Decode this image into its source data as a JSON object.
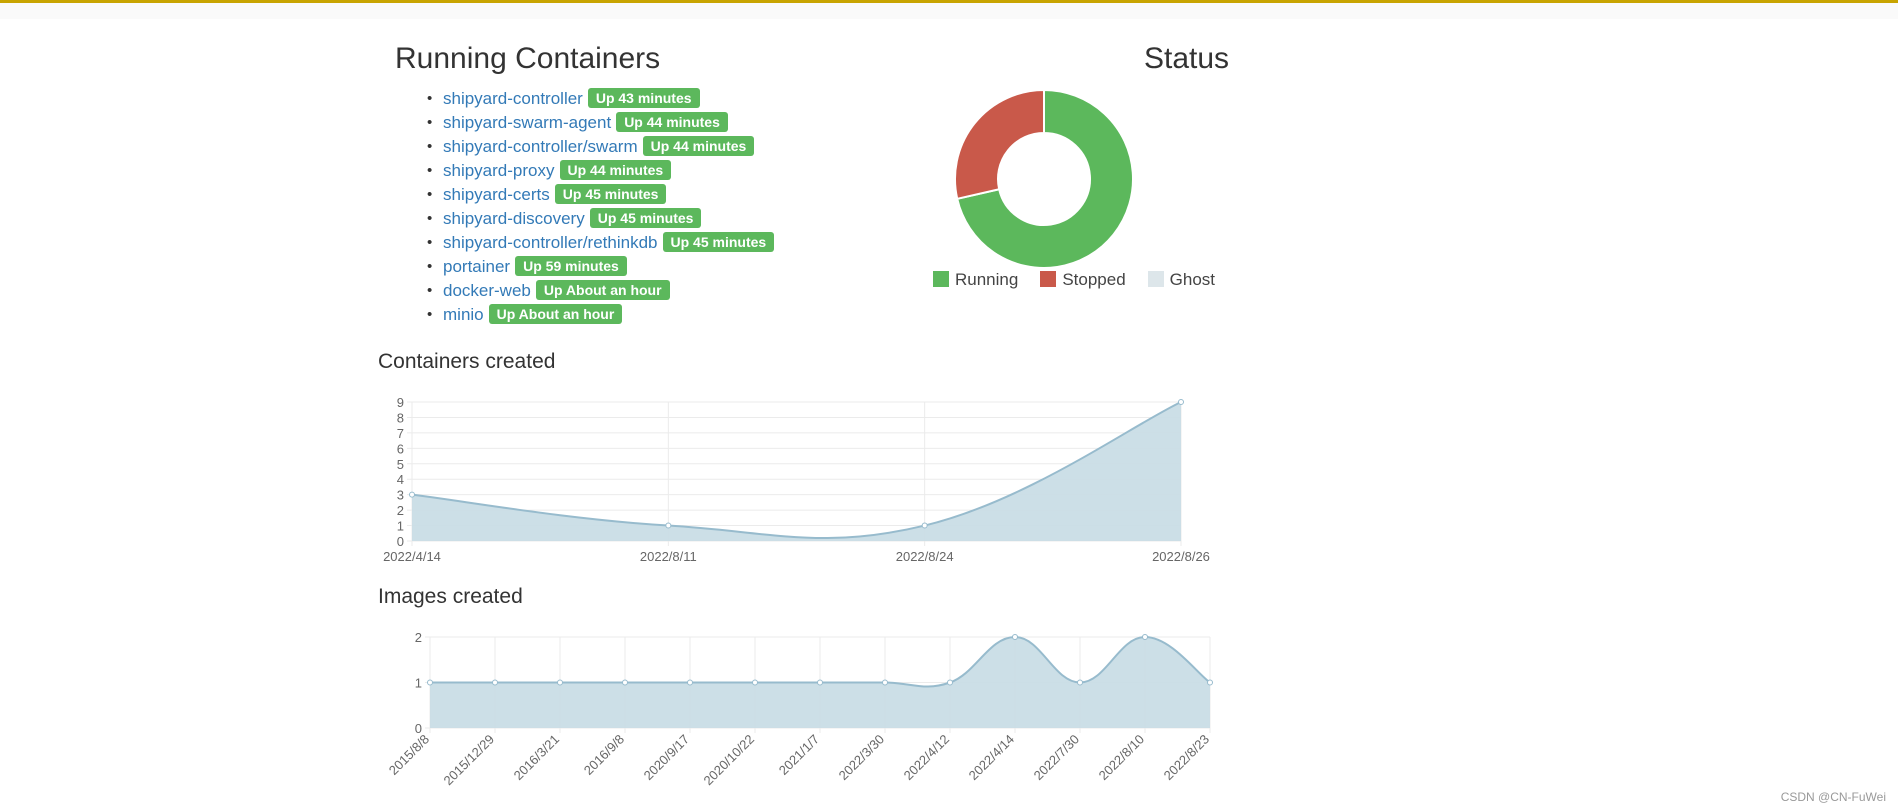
{
  "running": {
    "title": "Running Containers",
    "items": [
      {
        "name": "shipyard-controller",
        "status": "Up 43 minutes"
      },
      {
        "name": "shipyard-swarm-agent",
        "status": "Up 44 minutes"
      },
      {
        "name": "shipyard-controller/swarm",
        "status": "Up 44 minutes"
      },
      {
        "name": "shipyard-proxy",
        "status": "Up 44 minutes"
      },
      {
        "name": "shipyard-certs",
        "status": "Up 45 minutes"
      },
      {
        "name": "shipyard-discovery",
        "status": "Up 45 minutes"
      },
      {
        "name": "shipyard-controller/rethinkdb",
        "status": "Up 45 minutes"
      },
      {
        "name": "portainer",
        "status": "Up 59 minutes"
      },
      {
        "name": "docker-web",
        "status": "Up About an hour"
      },
      {
        "name": "minio",
        "status": "Up About an hour"
      }
    ]
  },
  "colors": {
    "top_bar": "#c8a400",
    "badge": "#5cb85c",
    "link": "#337ab7",
    "running": "#5cb85c",
    "stopped": "#c9594a",
    "ghost": "#dde6ea",
    "area_fill": "#c9dde6",
    "area_stroke": "#97bbcd"
  },
  "watermark": "CSDN @CN-FuWei",
  "chart_data": [
    {
      "type": "pie",
      "title": "Status",
      "labels": [
        "Running",
        "Stopped",
        "Ghost"
      ],
      "values": [
        10,
        4,
        0
      ],
      "donut": true,
      "legend": "bottom"
    },
    {
      "type": "area",
      "title": "Containers created",
      "x": [
        "2022/4/14",
        "2022/8/11",
        "2022/8/24",
        "2022/8/26"
      ],
      "values": [
        3,
        1,
        1,
        9
      ],
      "ylim": [
        0,
        9
      ],
      "yticks": [
        "0",
        "1",
        "2",
        "3",
        "4",
        "5",
        "6",
        "7",
        "8",
        "9"
      ],
      "grid": true
    },
    {
      "type": "area",
      "title": "Images created",
      "x": [
        "2015/8/8",
        "2015/12/29",
        "2016/3/21",
        "2016/9/8",
        "2020/9/17",
        "2020/10/22",
        "2021/1/7",
        "2022/3/30",
        "2022/4/12",
        "2022/4/14",
        "2022/7/30",
        "2022/8/10",
        "2022/8/23"
      ],
      "values": [
        1,
        1,
        1,
        1,
        1,
        1,
        1,
        1,
        1,
        2,
        1,
        2,
        1
      ],
      "ylim": [
        0,
        2
      ],
      "yticks": [
        "0",
        "1",
        "2"
      ],
      "grid": true
    }
  ]
}
